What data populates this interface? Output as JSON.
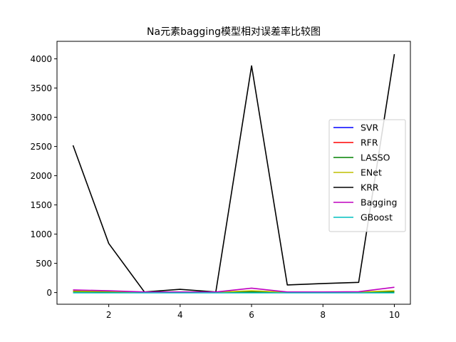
{
  "chart_data": {
    "type": "line",
    "title": "Na元素bagging模型相对误差率比较图",
    "xlabel": "",
    "ylabel": "",
    "xlim": [
      0.55,
      10.45
    ],
    "ylim": [
      -200,
      4300
    ],
    "x": [
      1,
      2,
      3,
      4,
      5,
      6,
      7,
      8,
      9,
      10
    ],
    "xticks": [
      2,
      4,
      6,
      8,
      10
    ],
    "yticks": [
      0,
      500,
      1000,
      1500,
      2000,
      2500,
      3000,
      3500,
      4000
    ],
    "legend_position": "center-right",
    "series": [
      {
        "name": "SVR",
        "color": "#0000ff",
        "values": [
          20,
          15,
          5,
          5,
          5,
          10,
          5,
          5,
          10,
          15
        ]
      },
      {
        "name": "RFR",
        "color": "#ff0000",
        "values": [
          30,
          20,
          5,
          5,
          5,
          20,
          5,
          5,
          5,
          20
        ]
      },
      {
        "name": "LASSO",
        "color": "#008000",
        "values": [
          15,
          10,
          3,
          3,
          3,
          10,
          3,
          3,
          5,
          10
        ]
      },
      {
        "name": "ENet",
        "color": "#bfbf00",
        "values": [
          25,
          20,
          5,
          5,
          5,
          30,
          5,
          5,
          10,
          30
        ]
      },
      {
        "name": "KRR",
        "color": "#000000",
        "values": [
          2520,
          840,
          10,
          55,
          10,
          3880,
          130,
          155,
          175,
          4080
        ]
      },
      {
        "name": "Bagging",
        "color": "#bf00bf",
        "values": [
          45,
          30,
          10,
          10,
          10,
          75,
          10,
          10,
          15,
          90
        ]
      },
      {
        "name": "GBoost",
        "color": "#00bfbf",
        "values": [
          -5,
          -5,
          -5,
          -5,
          -5,
          -5,
          -5,
          -5,
          -5,
          -5
        ]
      }
    ]
  }
}
